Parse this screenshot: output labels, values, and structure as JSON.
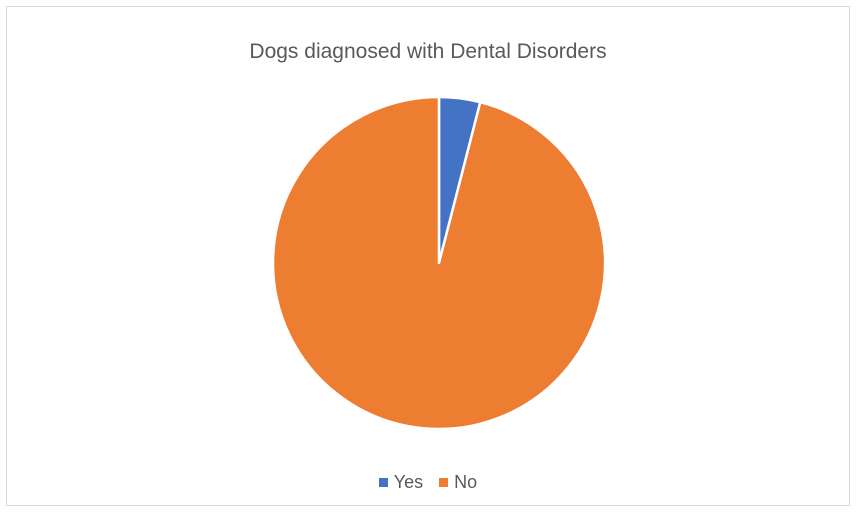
{
  "chart_data": {
    "type": "pie",
    "title": "Dogs diagnosed with Dental Disorders",
    "categories": [
      "Yes",
      "No"
    ],
    "values": [
      4,
      96
    ],
    "colors": [
      "#4472C4",
      "#ED7D31"
    ],
    "start_angle_deg": 0,
    "direction": "clockwise",
    "legend_position": "bottom",
    "slice_border_color": "#ffffff"
  }
}
